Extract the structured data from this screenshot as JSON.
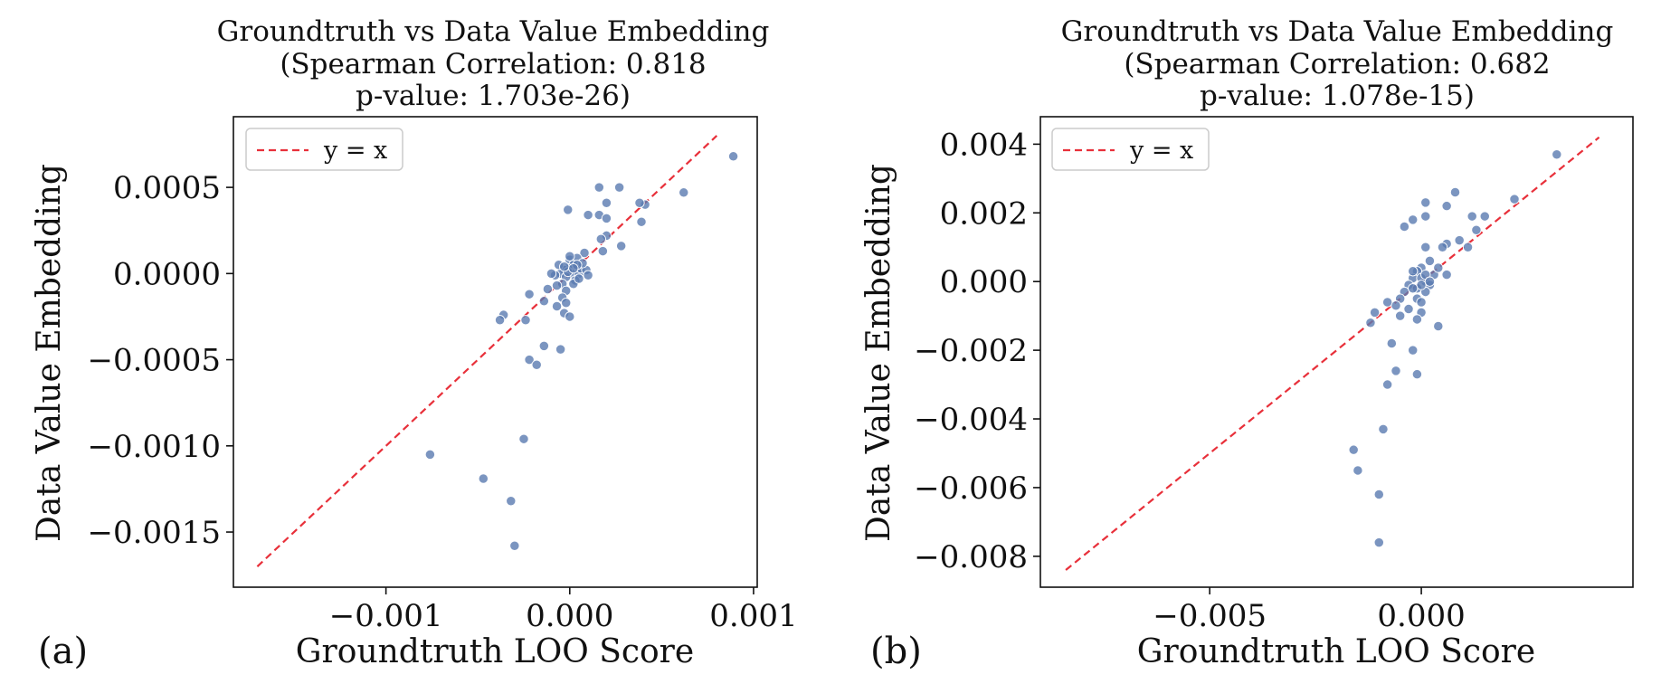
{
  "chart_data": [
    {
      "type": "scatter",
      "panel_label": "(a)",
      "title": [
        "Groundtruth vs Data Value Embedding",
        "(Spearman Correlation: 0.818",
        "p-value: 1.703e-26)"
      ],
      "xlabel": "Groundtruth LOO Score",
      "ylabel": "Data Value Embedding",
      "xlim": [
        -0.00183,
        0.00102
      ],
      "ylim": [
        -0.00182,
        0.00091
      ],
      "xticks": [
        -0.001,
        0.0,
        0.001
      ],
      "xtick_labels": [
        "−0.001",
        "0.000",
        "0.001"
      ],
      "yticks": [
        -0.0015,
        -0.001,
        -0.0005,
        0.0,
        0.0005
      ],
      "ytick_labels": [
        "−0.0015",
        "−0.0010",
        "−0.0005",
        "0.0000",
        "0.0005"
      ],
      "legend": {
        "label": "y = x",
        "position": "upper-left"
      },
      "reference_line": {
        "label": "y = x",
        "color": "#e8303a",
        "from": -0.0017,
        "to": 0.0008
      },
      "marker_color": "#5a7bb0",
      "series": [
        {
          "name": "points",
          "points": [
            [
              0.00089,
              0.00068
            ],
            [
              0.00062,
              0.00047
            ],
            [
              0.00041,
              0.0004
            ],
            [
              0.00038,
              0.00041
            ],
            [
              0.00039,
              0.0003
            ],
            [
              0.00027,
              0.0005
            ],
            [
              0.00016,
              0.0005
            ],
            [
              0.0002,
              0.00041
            ],
            [
              0.0001,
              0.00034
            ],
            [
              0.00016,
              0.00034
            ],
            [
              0.0002,
              0.00032
            ],
            [
              -1e-05,
              0.00037
            ],
            [
              0.0002,
              0.00022
            ],
            [
              0.00028,
              0.00016
            ],
            [
              0.00017,
              0.0002
            ],
            [
              0.00018,
              0.00013
            ],
            [
              8e-05,
              0.00012
            ],
            [
              0.0,
              8e-05
            ],
            [
              4e-05,
              9e-05
            ],
            [
              2e-05,
              5e-05
            ],
            [
              -1e-05,
              3e-05
            ],
            [
              -3e-05,
              2e-05
            ],
            [
              1e-05,
              0.0
            ],
            [
              5e-05,
              0.0
            ],
            [
              -5e-05,
              0.0
            ],
            [
              -2e-05,
              -2e-05
            ],
            [
              3e-05,
              -4e-05
            ],
            [
              -4e-05,
              -6e-05
            ],
            [
              6e-05,
              3e-05
            ],
            [
              9e-05,
              2e-05
            ],
            [
              -6e-05,
              5e-05
            ],
            [
              2e-05,
              -6e-05
            ],
            [
              7e-05,
              6e-05
            ],
            [
              -1e-05,
              1e-05
            ],
            [
              5e-05,
              -3e-05
            ],
            [
              -7e-05,
              -7e-05
            ],
            [
              -3e-05,
              4e-05
            ],
            [
              4e-05,
              5e-05
            ],
            [
              -8e-05,
              -1e-05
            ],
            [
              2e-05,
              3e-05
            ],
            [
              -2e-05,
              -0.0001
            ],
            [
              -4e-05,
              -0.00014
            ],
            [
              -0.00012,
              -9e-05
            ],
            [
              -2e-05,
              -0.00017
            ],
            [
              -0.00014,
              -0.00016
            ],
            [
              -7e-05,
              -0.00019
            ],
            [
              -3e-05,
              -0.00023
            ],
            [
              0.0,
              -0.00025
            ],
            [
              -0.00022,
              -0.00012
            ],
            [
              -0.00036,
              -0.00024
            ],
            [
              -0.00038,
              -0.00027
            ],
            [
              -0.00024,
              -0.00027
            ],
            [
              -0.00014,
              -0.00042
            ],
            [
              -5e-05,
              -0.00044
            ],
            [
              -0.00022,
              -0.0005
            ],
            [
              -0.00018,
              -0.00053
            ],
            [
              -0.00025,
              -0.00096
            ],
            [
              -0.00076,
              -0.00105
            ],
            [
              -0.00047,
              -0.00119
            ],
            [
              -0.00032,
              -0.00132
            ],
            [
              -0.0003,
              -0.00158
            ],
            [
              0.0,
              0.0001
            ],
            [
              -0.0001,
              0.0
            ],
            [
              0.0001,
              -1e-05
            ]
          ]
        }
      ]
    },
    {
      "type": "scatter",
      "panel_label": "(b)",
      "title": [
        "Groundtruth vs Data Value Embedding",
        "(Spearman Correlation: 0.682",
        "p-value: 1.078e-15)"
      ],
      "xlabel": "Groundtruth LOO Score",
      "ylabel": "Data Value Embedding",
      "xlim": [
        -0.009,
        0.005
      ],
      "ylim": [
        -0.0089,
        0.0048
      ],
      "xticks": [
        -0.005,
        0.0
      ],
      "xtick_labels": [
        "−0.005",
        "0.000"
      ],
      "yticks": [
        -0.008,
        -0.006,
        -0.004,
        -0.002,
        0.0,
        0.002,
        0.004
      ],
      "ytick_labels": [
        "−0.008",
        "−0.006",
        "−0.004",
        "−0.002",
        "0.000",
        "0.002",
        "0.004"
      ],
      "legend": {
        "label": "y = x",
        "position": "upper-left"
      },
      "reference_line": {
        "label": "y = x",
        "color": "#e8303a",
        "from": -0.0084,
        "to": 0.0042
      },
      "marker_color": "#5a7bb0",
      "series": [
        {
          "name": "points",
          "points": [
            [
              0.0032,
              0.0037
            ],
            [
              0.0022,
              0.0024
            ],
            [
              0.0015,
              0.0019
            ],
            [
              0.0012,
              0.0019
            ],
            [
              0.0013,
              0.0015
            ],
            [
              0.0008,
              0.0026
            ],
            [
              0.0006,
              0.0022
            ],
            [
              0.0001,
              0.0023
            ],
            [
              0.0001,
              0.0019
            ],
            [
              -0.0002,
              0.0018
            ],
            [
              -0.0004,
              0.0016
            ],
            [
              0.0009,
              0.0012
            ],
            [
              0.0011,
              0.001
            ],
            [
              0.0006,
              0.0011
            ],
            [
              0.0005,
              0.001
            ],
            [
              0.0001,
              0.001
            ],
            [
              0.0002,
              0.0006
            ],
            [
              0.0,
              0.0004
            ],
            [
              -0.0001,
              0.0003
            ],
            [
              0.0003,
              0.0002
            ],
            [
              -0.0002,
              0.0001
            ],
            [
              0.0001,
              0.0
            ],
            [
              -0.0003,
              -0.0001
            ],
            [
              0.0002,
              -0.0001
            ],
            [
              -0.0001,
              -0.0002
            ],
            [
              0.0,
              0.0001
            ],
            [
              -0.0002,
              0.0003
            ],
            [
              0.0004,
              0.0004
            ],
            [
              0.0001,
              -0.0003
            ],
            [
              -0.0004,
              -0.0003
            ],
            [
              -0.0005,
              -0.0005
            ],
            [
              0.0006,
              0.0002
            ],
            [
              -0.0001,
              -0.0005
            ],
            [
              0.0,
              -0.0006
            ],
            [
              -0.0003,
              -0.0008
            ],
            [
              -0.0006,
              -0.0007
            ],
            [
              -0.0008,
              -0.0006
            ],
            [
              0.0,
              -0.0009
            ],
            [
              -0.0001,
              -0.0011
            ],
            [
              -0.0005,
              -0.001
            ],
            [
              -0.0011,
              -0.0009
            ],
            [
              -0.0012,
              -0.0012
            ],
            [
              0.0004,
              -0.0013
            ],
            [
              -0.0007,
              -0.0018
            ],
            [
              -0.0002,
              -0.002
            ],
            [
              -0.0006,
              -0.0026
            ],
            [
              -0.0001,
              -0.0027
            ],
            [
              -0.0008,
              -0.003
            ],
            [
              -0.0009,
              -0.0043
            ],
            [
              -0.0016,
              -0.0049
            ],
            [
              -0.0015,
              -0.0055
            ],
            [
              -0.001,
              -0.0062
            ],
            [
              -0.001,
              -0.0076
            ],
            [
              0.0,
              -0.0001
            ],
            [
              0.0001,
              0.0002
            ],
            [
              -0.0002,
              -0.0002
            ],
            [
              0.0002,
              0.0
            ]
          ]
        }
      ]
    }
  ]
}
